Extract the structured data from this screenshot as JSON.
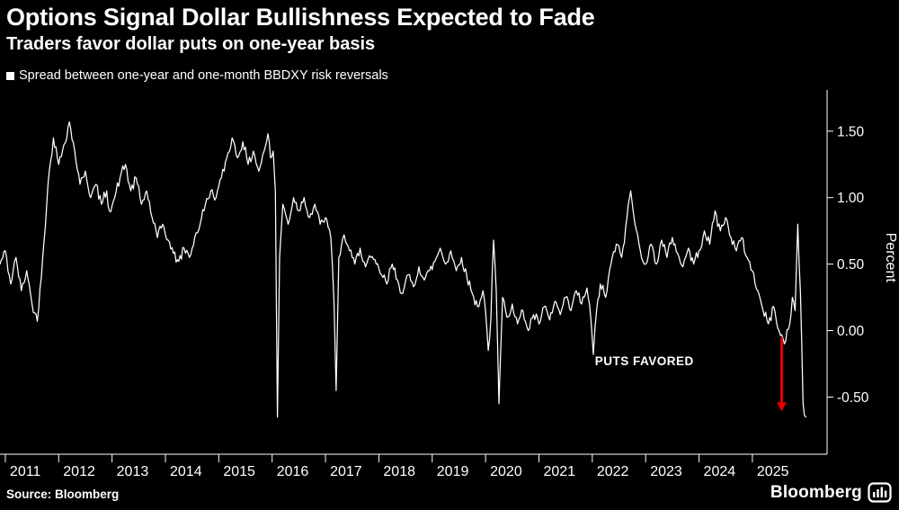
{
  "header": {
    "title": "Options Signal Dollar Bullishness Expected to Fade",
    "subtitle": "Traders favor dollar puts on one-year basis"
  },
  "legend": {
    "label": "Spread between one-year and one-month BBDXY risk reversals",
    "swatch_color": "#ffffff"
  },
  "footer": {
    "source": "Source: Bloomberg",
    "brand": "Bloomberg"
  },
  "chart_data": {
    "type": "line",
    "title": "Options Signal Dollar Bullishness Expected to Fade",
    "subtitle": "Traders favor dollar puts on one-year basis",
    "legend": "Spread between one-year and one-month BBDXY risk reversals",
    "ylabel": "Percent",
    "xlabel": "",
    "xlim": [
      2010.9,
      2026.4
    ],
    "ylim": [
      -0.93,
      1.81
    ],
    "grid": false,
    "legend_position": "top-left",
    "x_ticks": [
      2011,
      2012,
      2013,
      2014,
      2015,
      2016,
      2017,
      2018,
      2019,
      2020,
      2021,
      2022,
      2023,
      2024,
      2025
    ],
    "y_ticks": [
      {
        "label": "1.50",
        "value": 1.5
      },
      {
        "label": "1.00",
        "value": 1.0
      },
      {
        "label": "0.50",
        "value": 0.5
      },
      {
        "label": "0.00",
        "value": 0.0
      },
      {
        "label": "-0.50",
        "value": -0.5
      }
    ],
    "colors": {
      "background": "#000000",
      "line": "#ffffff",
      "axis": "#ffffff",
      "text": "#ffffff",
      "annotation": "#e60000"
    },
    "render_noise": 0.045,
    "annotation": {
      "text": "PUTS FAVORED",
      "x": 2022.05,
      "y": -0.26,
      "arrow": {
        "x": 2025.55,
        "y_from": -0.05,
        "y_to": -0.6
      }
    },
    "points": [
      [
        2010.9,
        0.5
      ],
      [
        2011.0,
        0.6
      ],
      [
        2011.1,
        0.35
      ],
      [
        2011.2,
        0.55
      ],
      [
        2011.3,
        0.3
      ],
      [
        2011.4,
        0.45
      ],
      [
        2011.5,
        0.2
      ],
      [
        2011.6,
        0.07
      ],
      [
        2011.7,
        0.55
      ],
      [
        2011.8,
        1.1
      ],
      [
        2011.9,
        1.45
      ],
      [
        2012.0,
        1.25
      ],
      [
        2012.1,
        1.4
      ],
      [
        2012.2,
        1.57
      ],
      [
        2012.3,
        1.35
      ],
      [
        2012.4,
        1.1
      ],
      [
        2012.5,
        1.2
      ],
      [
        2012.6,
        1.0
      ],
      [
        2012.7,
        1.1
      ],
      [
        2012.8,
        0.95
      ],
      [
        2012.9,
        1.05
      ],
      [
        2012.95,
        0.9
      ],
      [
        2013.05,
        1.0
      ],
      [
        2013.15,
        1.15
      ],
      [
        2013.25,
        1.25
      ],
      [
        2013.35,
        1.05
      ],
      [
        2013.45,
        1.15
      ],
      [
        2013.55,
        0.95
      ],
      [
        2013.65,
        1.05
      ],
      [
        2013.75,
        0.85
      ],
      [
        2013.85,
        0.7
      ],
      [
        2013.95,
        0.8
      ],
      [
        2014.05,
        0.68
      ],
      [
        2014.15,
        0.58
      ],
      [
        2014.25,
        0.52
      ],
      [
        2014.35,
        0.62
      ],
      [
        2014.45,
        0.55
      ],
      [
        2014.55,
        0.7
      ],
      [
        2014.65,
        0.8
      ],
      [
        2014.75,
        0.95
      ],
      [
        2014.85,
        1.05
      ],
      [
        2014.95,
        1.0
      ],
      [
        2015.05,
        1.15
      ],
      [
        2015.15,
        1.3
      ],
      [
        2015.25,
        1.45
      ],
      [
        2015.35,
        1.3
      ],
      [
        2015.45,
        1.42
      ],
      [
        2015.55,
        1.25
      ],
      [
        2015.65,
        1.35
      ],
      [
        2015.75,
        1.2
      ],
      [
        2015.85,
        1.35
      ],
      [
        2015.92,
        1.48
      ],
      [
        2015.97,
        1.3
      ],
      [
        2016.02,
        1.35
      ],
      [
        2016.06,
        1.05
      ],
      [
        2016.1,
        -0.65
      ],
      [
        2016.14,
        0.55
      ],
      [
        2016.2,
        0.95
      ],
      [
        2016.3,
        0.8
      ],
      [
        2016.4,
        1.0
      ],
      [
        2016.5,
        0.9
      ],
      [
        2016.6,
        1.0
      ],
      [
        2016.7,
        0.85
      ],
      [
        2016.8,
        0.95
      ],
      [
        2016.9,
        0.8
      ],
      [
        2017.0,
        0.85
      ],
      [
        2017.1,
        0.7
      ],
      [
        2017.16,
        0.2
      ],
      [
        2017.2,
        -0.45
      ],
      [
        2017.25,
        0.55
      ],
      [
        2017.35,
        0.72
      ],
      [
        2017.45,
        0.6
      ],
      [
        2017.55,
        0.5
      ],
      [
        2017.65,
        0.62
      ],
      [
        2017.75,
        0.48
      ],
      [
        2017.85,
        0.55
      ],
      [
        2017.95,
        0.5
      ],
      [
        2018.05,
        0.42
      ],
      [
        2018.15,
        0.35
      ],
      [
        2018.25,
        0.5
      ],
      [
        2018.35,
        0.38
      ],
      [
        2018.45,
        0.28
      ],
      [
        2018.55,
        0.42
      ],
      [
        2018.65,
        0.33
      ],
      [
        2018.75,
        0.48
      ],
      [
        2018.85,
        0.38
      ],
      [
        2018.95,
        0.45
      ],
      [
        2019.05,
        0.52
      ],
      [
        2019.15,
        0.62
      ],
      [
        2019.25,
        0.5
      ],
      [
        2019.35,
        0.6
      ],
      [
        2019.45,
        0.45
      ],
      [
        2019.55,
        0.55
      ],
      [
        2019.65,
        0.4
      ],
      [
        2019.75,
        0.28
      ],
      [
        2019.85,
        0.18
      ],
      [
        2019.95,
        0.3
      ],
      [
        2020.0,
        0.15
      ],
      [
        2020.05,
        -0.15
      ],
      [
        2020.1,
        0.1
      ],
      [
        2020.15,
        0.68
      ],
      [
        2020.2,
        0.3
      ],
      [
        2020.25,
        -0.55
      ],
      [
        2020.32,
        0.25
      ],
      [
        2020.4,
        0.1
      ],
      [
        2020.5,
        0.2
      ],
      [
        2020.6,
        0.05
      ],
      [
        2020.7,
        0.15
      ],
      [
        2020.8,
        0.0
      ],
      [
        2020.9,
        0.12
      ],
      [
        2021.0,
        0.05
      ],
      [
        2021.1,
        0.18
      ],
      [
        2021.2,
        0.08
      ],
      [
        2021.3,
        0.22
      ],
      [
        2021.4,
        0.12
      ],
      [
        2021.5,
        0.25
      ],
      [
        2021.6,
        0.15
      ],
      [
        2021.7,
        0.3
      ],
      [
        2021.8,
        0.2
      ],
      [
        2021.9,
        0.32
      ],
      [
        2021.97,
        0.1
      ],
      [
        2022.02,
        -0.18
      ],
      [
        2022.08,
        0.15
      ],
      [
        2022.15,
        0.35
      ],
      [
        2022.25,
        0.25
      ],
      [
        2022.35,
        0.5
      ],
      [
        2022.45,
        0.65
      ],
      [
        2022.55,
        0.55
      ],
      [
        2022.65,
        0.85
      ],
      [
        2022.72,
        1.05
      ],
      [
        2022.8,
        0.8
      ],
      [
        2022.9,
        0.6
      ],
      [
        2023.0,
        0.5
      ],
      [
        2023.1,
        0.65
      ],
      [
        2023.2,
        0.5
      ],
      [
        2023.3,
        0.68
      ],
      [
        2023.4,
        0.55
      ],
      [
        2023.5,
        0.7
      ],
      [
        2023.6,
        0.58
      ],
      [
        2023.7,
        0.48
      ],
      [
        2023.8,
        0.62
      ],
      [
        2023.9,
        0.5
      ],
      [
        2024.0,
        0.6
      ],
      [
        2024.1,
        0.75
      ],
      [
        2024.2,
        0.65
      ],
      [
        2024.3,
        0.9
      ],
      [
        2024.4,
        0.75
      ],
      [
        2024.5,
        0.85
      ],
      [
        2024.6,
        0.7
      ],
      [
        2024.7,
        0.6
      ],
      [
        2024.8,
        0.7
      ],
      [
        2024.9,
        0.55
      ],
      [
        2025.0,
        0.45
      ],
      [
        2025.1,
        0.3
      ],
      [
        2025.2,
        0.15
      ],
      [
        2025.3,
        0.05
      ],
      [
        2025.4,
        0.18
      ],
      [
        2025.5,
        0.0
      ],
      [
        2025.6,
        -0.1
      ],
      [
        2025.7,
        0.05
      ],
      [
        2025.75,
        0.25
      ],
      [
        2025.8,
        0.15
      ],
      [
        2025.85,
        0.8
      ],
      [
        2025.9,
        0.3
      ],
      [
        2025.95,
        -0.55
      ],
      [
        2026.0,
        -0.65
      ]
    ]
  }
}
